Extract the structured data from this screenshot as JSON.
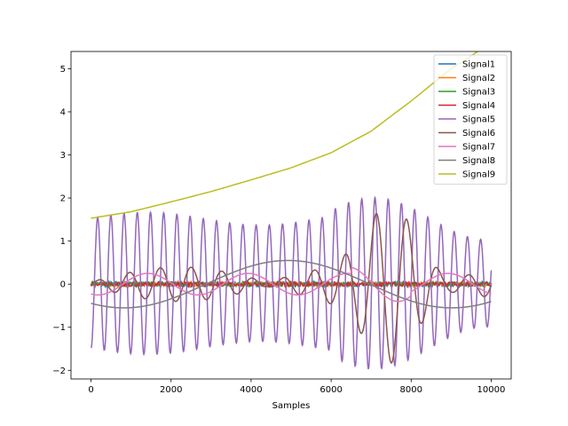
{
  "chart_data": {
    "type": "line",
    "title": "",
    "xlabel": "Samples",
    "ylabel": "",
    "xlim": [
      -500,
      10500
    ],
    "ylim": [
      -2.2,
      5.4
    ],
    "xticks": [
      0,
      2000,
      4000,
      6000,
      8000,
      10000
    ],
    "yticks": [
      -2,
      -1,
      0,
      1,
      2,
      3,
      4,
      5
    ],
    "ytick_labels": [
      "−2",
      "−1",
      "0",
      "1",
      "2",
      "3",
      "4",
      "5"
    ],
    "grid": false,
    "legend_position": "top-right",
    "n_samples": 10000,
    "series": [
      {
        "name": "Signal1",
        "color": "#1f77b4",
        "kind": "noise",
        "params": {
          "amp": 0.06,
          "seed": 1
        }
      },
      {
        "name": "Signal2",
        "color": "#ff7f0e",
        "kind": "noise",
        "params": {
          "amp": 0.05,
          "seed": 2
        }
      },
      {
        "name": "Signal3",
        "color": "#2ca02c",
        "kind": "noise",
        "params": {
          "amp": 0.05,
          "seed": 3
        }
      },
      {
        "name": "Signal4",
        "color": "#d62728",
        "kind": "noise",
        "params": {
          "amp": 0.05,
          "seed": 4
        }
      },
      {
        "name": "Signal5",
        "color": "#9467bd",
        "kind": "chirp_sine",
        "params": {
          "amp": 1.5,
          "period": 330,
          "phase": -1.6
        }
      },
      {
        "name": "Signal6",
        "color": "#8c564b",
        "kind": "modulated",
        "params": {
          "amp": 0.55,
          "period": 770,
          "burst_center": 7500,
          "burst_amp": 1.5
        }
      },
      {
        "name": "Signal7",
        "color": "#e377c2",
        "kind": "slow_wave",
        "params": {
          "amp": 0.25,
          "period": 2500,
          "phase": -2.0
        }
      },
      {
        "name": "Signal8",
        "color": "#7f7f7f",
        "kind": "slow_wave",
        "params": {
          "amp": 0.55,
          "period": 8200,
          "phase": -2.2
        }
      },
      {
        "name": "Signal9",
        "color": "#bcbd22",
        "kind": "curve",
        "params": {
          "points": [
            [
              0,
              1.53
            ],
            [
              1000,
              1.68
            ],
            [
              2000,
              1.91
            ],
            [
              3000,
              2.15
            ],
            [
              4000,
              2.42
            ],
            [
              5000,
              2.7
            ],
            [
              6000,
              3.05
            ],
            [
              7000,
              3.55
            ],
            [
              8000,
              4.25
            ],
            [
              9000,
              5.0
            ],
            [
              10000,
              5.6
            ]
          ]
        }
      }
    ]
  }
}
